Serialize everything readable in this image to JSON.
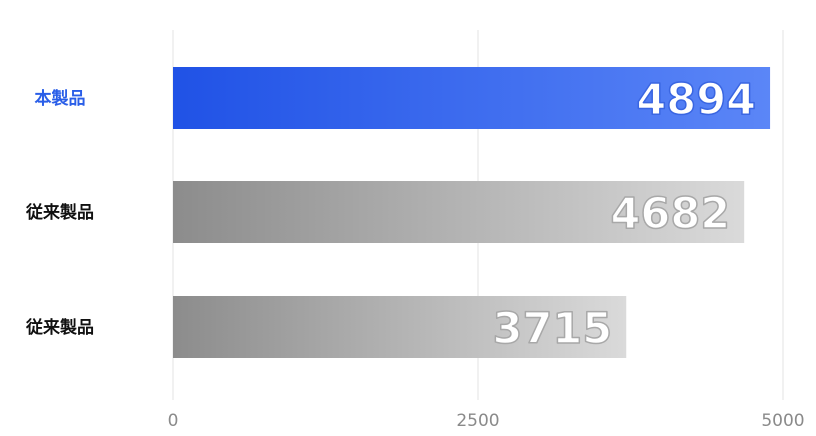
{
  "chart_data": {
    "type": "bar",
    "orientation": "horizontal",
    "categories": [
      "本製品",
      "従来製品",
      "従来製品"
    ],
    "values": [
      4894,
      4682,
      3715
    ],
    "xlim": [
      0,
      5000
    ],
    "xticks": [
      0,
      2500,
      5000
    ],
    "grid": true,
    "highlight_index": 0,
    "colors": {
      "highlight_label": "#2a5ee8",
      "default_label": "#111111",
      "highlight_bar_start": "#2052e6",
      "highlight_bar_end": "#5b86f7",
      "default_bar_start": "#8c8c8c",
      "default_bar_end": "#dadada",
      "value_stroke_highlight": "#3a66e2",
      "value_stroke_default": "#a8a8a8"
    }
  }
}
